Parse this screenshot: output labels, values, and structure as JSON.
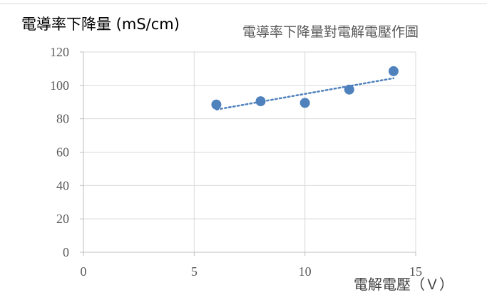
{
  "chart_data": {
    "type": "scatter",
    "title": "電導率下降量對電解電壓作圖",
    "xlabel": "電解電壓（Ｖ）",
    "ylabel": "電導率下降量 (mS/cm)",
    "xlim": [
      0,
      15
    ],
    "ylim": [
      0,
      120
    ],
    "x_ticks": [
      "0",
      "5",
      "10",
      "15"
    ],
    "y_ticks": [
      "0",
      "20",
      "40",
      "60",
      "80",
      "100",
      "120"
    ],
    "grid": true,
    "legend": "none",
    "trendline": "linear",
    "series": [
      {
        "x": [
          6,
          8,
          10,
          12,
          14
        ],
        "y": [
          88.5,
          90.5,
          89.5,
          97.5,
          108.5
        ],
        "color": "#4f81bd"
      }
    ]
  }
}
